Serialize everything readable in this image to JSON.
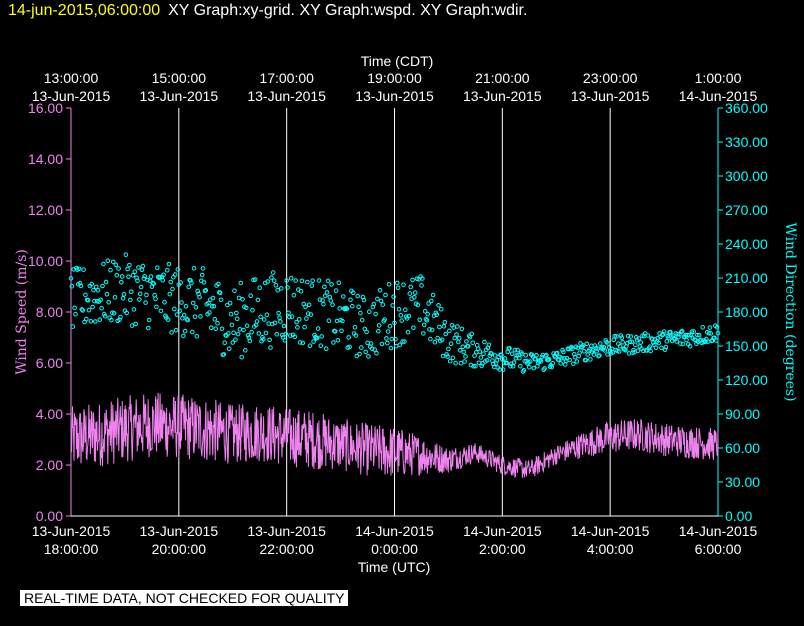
{
  "header": {
    "timestamp": "14-jun-2015,06:00:00",
    "graph_titles": "XY Graph:xy-grid.  XY Graph:wspd.  XY Graph:wdir."
  },
  "disclaimer": "REAL-TIME DATA, NOT CHECKED FOR QUALITY",
  "colors": {
    "background": "#000000",
    "wind_speed": "#ee82ee",
    "wind_direction": "#00ffff",
    "grid": "#ffffff",
    "text": "#ffffff",
    "header_timestamp": "#ffff00"
  },
  "chart_data": {
    "type": "line",
    "top_axis_label": "Time (CDT)",
    "top_ticks": [
      [
        "13:00:00",
        "13-Jun-2015"
      ],
      [
        "15:00:00",
        "13-Jun-2015"
      ],
      [
        "17:00:00",
        "13-Jun-2015"
      ],
      [
        "19:00:00",
        "13-Jun-2015"
      ],
      [
        "21:00:00",
        "13-Jun-2015"
      ],
      [
        "23:00:00",
        "13-Jun-2015"
      ],
      [
        "1:00:00",
        "14-Jun-2015"
      ]
    ],
    "xlabel": "Time (UTC)",
    "bottom_ticks": [
      [
        "13-Jun-2015",
        "18:00:00"
      ],
      [
        "13-Jun-2015",
        "20:00:00"
      ],
      [
        "13-Jun-2015",
        "22:00:00"
      ],
      [
        "14-Jun-2015",
        "0:00:00"
      ],
      [
        "14-Jun-2015",
        "2:00:00"
      ],
      [
        "14-Jun-2015",
        "4:00:00"
      ],
      [
        "14-Jun-2015",
        "6:00:00"
      ]
    ],
    "x_range_hours_utc": [
      "13-Jun-2015 18:00:00",
      "14-Jun-2015 06:00:00"
    ],
    "grid": true,
    "y_left": {
      "label": "Wind Speed (m/s)",
      "ylim": [
        0,
        16
      ],
      "ticks": [
        "0.00",
        "2.00",
        "4.00",
        "6.00",
        "8.00",
        "10.00",
        "12.00",
        "14.00",
        "16.00"
      ]
    },
    "y_right": {
      "label": "Wind Direction (degrees)",
      "ylim": [
        0,
        360
      ],
      "ticks": [
        "0.00",
        "30.00",
        "60.00",
        "90.00",
        "120.00",
        "150.00",
        "180.00",
        "210.00",
        "240.00",
        "270.00",
        "300.00",
        "330.00",
        "360.00"
      ]
    },
    "series": [
      {
        "name": "wspd",
        "kind": "line",
        "axis": "left",
        "x_hours": [
          0,
          0.5,
          1,
          1.5,
          2,
          2.5,
          3,
          3.5,
          4,
          4.5,
          5,
          5.5,
          6,
          6.5,
          7,
          7.5,
          8,
          8.5,
          9,
          9.5,
          10,
          10.5,
          11,
          11.5,
          12
        ],
        "values": [
          3.0,
          3.2,
          3.4,
          3.6,
          3.5,
          3.4,
          3.2,
          3.3,
          3.1,
          3.0,
          2.8,
          2.6,
          2.5,
          2.4,
          2.2,
          2.5,
          2.0,
          1.8,
          2.4,
          2.8,
          3.1,
          3.2,
          3.0,
          2.9,
          2.8
        ],
        "noise_amplitude": [
          1.0,
          1.0,
          1.0,
          1.0,
          1.0,
          1.0,
          0.9,
          0.9,
          0.9,
          0.9,
          0.8,
          0.8,
          0.8,
          0.6,
          0.4,
          0.3,
          0.3,
          0.3,
          0.3,
          0.4,
          0.5,
          0.5,
          0.5,
          0.5,
          0.5
        ]
      },
      {
        "name": "wdir",
        "kind": "scatter",
        "axis": "right",
        "x_hours": [
          0,
          0.5,
          1,
          1.5,
          2,
          2.5,
          3,
          3.5,
          4,
          4.5,
          5,
          5.5,
          6,
          6.5,
          7,
          7.5,
          8,
          8.5,
          9,
          9.5,
          10,
          10.5,
          11,
          11.5,
          12
        ],
        "values": [
          190,
          195,
          200,
          195,
          190,
          185,
          170,
          180,
          185,
          180,
          175,
          165,
          180,
          185,
          155,
          145,
          140,
          135,
          138,
          145,
          150,
          152,
          155,
          158,
          162
        ],
        "noise_amplitude": [
          20,
          20,
          22,
          22,
          22,
          24,
          24,
          24,
          24,
          22,
          22,
          20,
          22,
          20,
          14,
          10,
          8,
          6,
          6,
          6,
          6,
          6,
          6,
          6,
          6
        ]
      }
    ]
  }
}
